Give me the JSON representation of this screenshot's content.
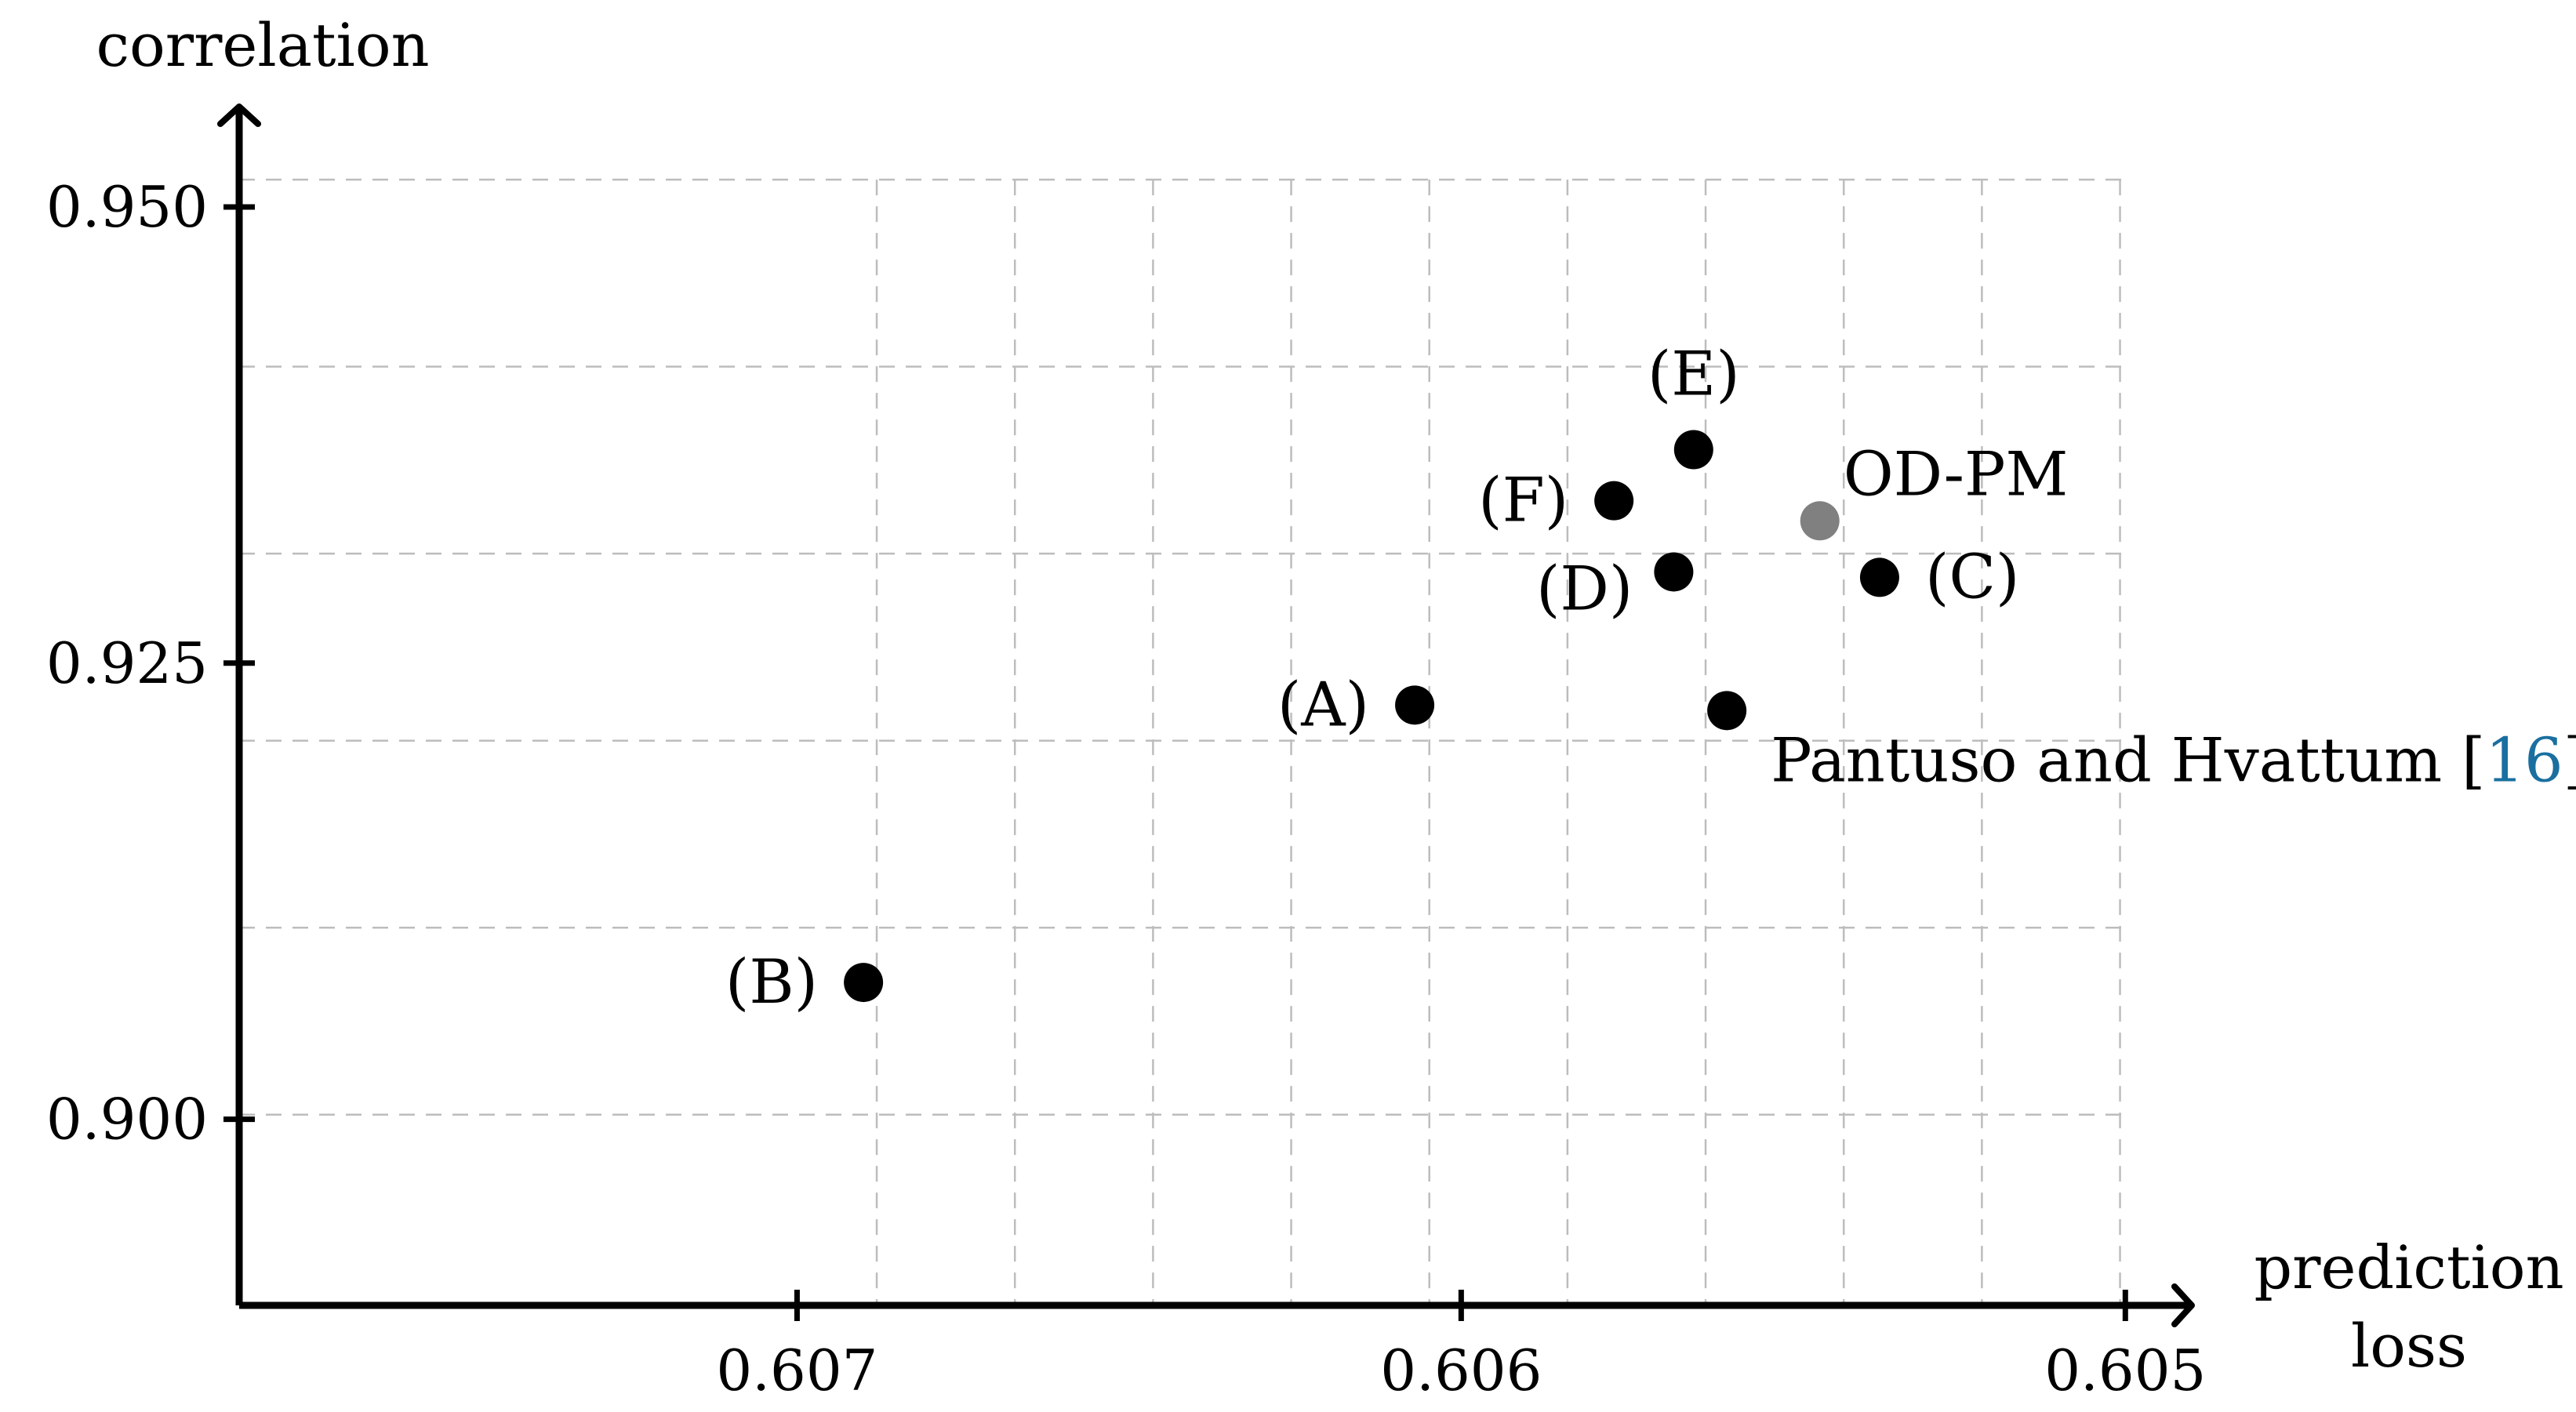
{
  "chart_data": {
    "type": "scatter",
    "xlabel": [
      "prediction",
      "loss"
    ],
    "ylabel": "correlation",
    "x_reversed": true,
    "xlim": [
      0.60784,
      0.6049
    ],
    "ylim": [
      0.8898,
      0.9555
    ],
    "x_ticks": [
      {
        "value": 0.607,
        "label": "0.607"
      },
      {
        "value": 0.606,
        "label": "0.606"
      },
      {
        "value": 0.605,
        "label": "0.605"
      }
    ],
    "y_ticks": [
      {
        "value": 0.9,
        "label": "0.900"
      },
      {
        "value": 0.925,
        "label": "0.925"
      },
      {
        "value": 0.95,
        "label": "0.950"
      }
    ],
    "grid": true,
    "points": [
      {
        "id": "A",
        "label": "(A)",
        "x": 0.60607,
        "y": 0.9227,
        "color": "#000000",
        "label_pos": "left"
      },
      {
        "id": "B",
        "label": "(B)",
        "x": 0.6069,
        "y": 0.9075,
        "color": "#000000",
        "label_pos": "left"
      },
      {
        "id": "C",
        "label": "(C)",
        "x": 0.60537,
        "y": 0.9297,
        "color": "#000000",
        "label_pos": "right"
      },
      {
        "id": "D",
        "label": "(D)",
        "x": 0.60568,
        "y": 0.93,
        "color": "#000000",
        "label_pos": "left-below"
      },
      {
        "id": "E",
        "label": "(E)",
        "x": 0.60565,
        "y": 0.9367,
        "color": "#000000",
        "label_pos": "above"
      },
      {
        "id": "F",
        "label": "(F)",
        "x": 0.60577,
        "y": 0.9339,
        "color": "#000000",
        "label_pos": "left"
      },
      {
        "id": "ODPM",
        "label": "OD-PM",
        "x": 0.60546,
        "y": 0.9328,
        "color": "#808080",
        "label_pos": "above-right"
      },
      {
        "id": "PH",
        "label": "Pantuso and Hvattum [",
        "cite": "16",
        "label_end": "]",
        "x": 0.6056,
        "y": 0.9224,
        "color": "#000000",
        "cite_color": "#1a6fa0",
        "label_pos": "below-right"
      }
    ]
  }
}
